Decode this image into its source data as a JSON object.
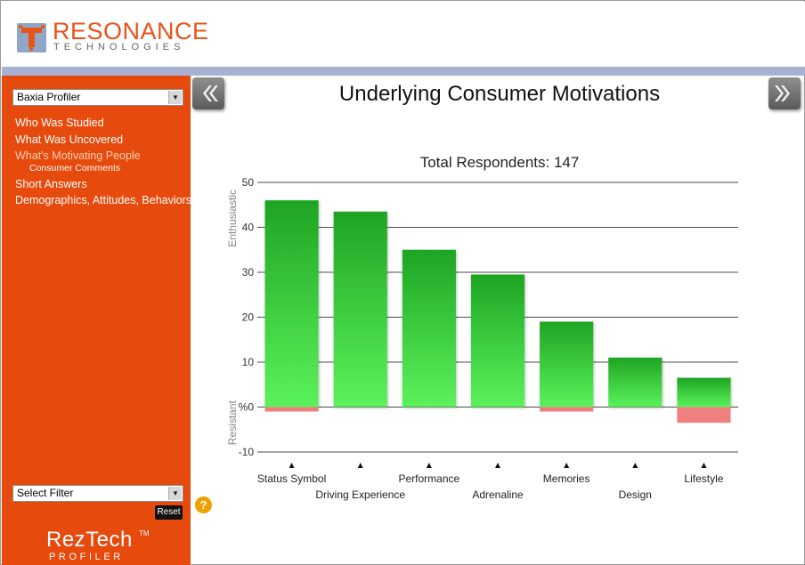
{
  "header": {
    "logo_title": "RESONANCE",
    "logo_subtitle": "TECHNOLOGIES"
  },
  "sidebar": {
    "profile_select": "Baxia Profiler",
    "nav_items": [
      {
        "label": "Who Was Studied"
      },
      {
        "label": "What Was Uncovered"
      },
      {
        "label": "What's Motivating People",
        "active": true
      },
      {
        "label": "Short Answers"
      },
      {
        "label": "Demographics, Attitudes, Behaviors"
      }
    ],
    "sub_item": "Consumer Comments",
    "filter_select": "Select Filter",
    "reset_label": "Reset",
    "help_icon": "question-mark-icon",
    "brand_name": "RezTech",
    "brand_tm": "TM",
    "brand_sub": "PROFILER"
  },
  "main": {
    "title": "Underlying Consumer Motivations",
    "prev_icon": "double-chevron-left-icon",
    "next_icon": "double-chevron-right-icon"
  },
  "colors": {
    "sidebar": "#e64a0d",
    "accent": "#e8531a",
    "header_bar": "#a7b2d2",
    "bar_green_top": "#1ea523",
    "bar_green_bottom": "#5cf25c",
    "bar_red": "#f08080"
  },
  "chart_data": {
    "type": "bar",
    "title": "Total Respondents: 147",
    "y_upper_label": "Enthusiastic",
    "y_lower_label": "Resistant",
    "y_unit": "%",
    "ylim": [
      -10,
      50
    ],
    "yticks": [
      -10,
      0,
      10,
      20,
      30,
      40,
      50
    ],
    "grid": true,
    "categories": [
      "Status Symbol",
      "Driving Experience",
      "Performance",
      "Adrenaline",
      "Memories",
      "Design",
      "Lifestyle"
    ],
    "series": [
      {
        "values": [
          46,
          43.5,
          35,
          29.5,
          19,
          11,
          6.5
        ]
      },
      {
        "values": [
          -1,
          0,
          0,
          0,
          -1,
          0,
          -3.5
        ]
      }
    ]
  }
}
